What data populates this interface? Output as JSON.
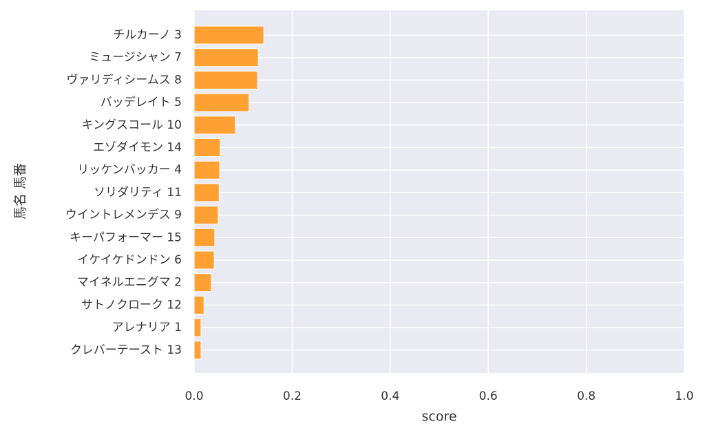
{
  "chart_data": {
    "type": "barh",
    "xlabel": "score",
    "ylabel": "馬名 馬番",
    "categories": [
      "チルカーノ 3",
      "ミュージシャン 7",
      "ヴァリディシームス 8",
      "バッデレイト 5",
      "キングスコール 10",
      "エゾダイモン 14",
      "リッケンバッカー 4",
      "ソリダリティ 11",
      "ウイントレメンデス 9",
      "キーパフォーマー 15",
      "イケイケドンドン 6",
      "マイネルエニグマ 2",
      "サトノクローク 12",
      "アレナリア 1",
      "クレバーテースト 13"
    ],
    "values": [
      0.142,
      0.131,
      0.129,
      0.112,
      0.084,
      0.053,
      0.052,
      0.051,
      0.049,
      0.042,
      0.041,
      0.035,
      0.02,
      0.014,
      0.014
    ],
    "color": "#ffa033",
    "xlim": [
      0,
      1.0
    ],
    "xticks": [
      {
        "value": 0,
        "label": "0.0"
      },
      0.2,
      0.4,
      0.6,
      0.8,
      {
        "value": 1.0,
        "label": "1.0"
      }
    ],
    "grid": true
  }
}
